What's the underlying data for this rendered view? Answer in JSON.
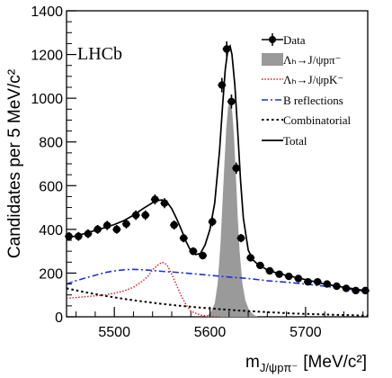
{
  "chart_data": {
    "type": "line",
    "experiment_label": "LHCb",
    "xlabel_main": "m",
    "xlabel_sub": "J/ψpπ⁻",
    "xlabel_unit": "[MeV/c²]",
    "ylabel": "Candidates per 5 MeV/c²",
    "xlim": [
      5450,
      5765
    ],
    "ylim": [
      0,
      1400
    ],
    "x_ticks": [
      5500,
      5600,
      5700
    ],
    "x_tick_labels": [
      "5500",
      "5600",
      "5700"
    ],
    "y_ticks": [
      0,
      200,
      400,
      600,
      800,
      1000,
      1200,
      1400
    ],
    "y_tick_labels": [
      "0",
      "200",
      "400",
      "600",
      "800",
      "1000",
      "1200",
      "1400"
    ],
    "legend": {
      "placement": "top-right",
      "entries": [
        {
          "key": "data",
          "label": "Data"
        },
        {
          "key": "signal",
          "label": "Λₕ→J/ψpπ⁻"
        },
        {
          "key": "pk",
          "label": "Λₕ→J/ψpK⁻"
        },
        {
          "key": "brefl",
          "label": "B reflections"
        },
        {
          "key": "comb",
          "label": "Combinatorial"
        },
        {
          "key": "total",
          "label": "Total"
        }
      ]
    },
    "colors": {
      "data": "#000000",
      "signal_fill": "#9a9a9a",
      "pk": "#e8141c",
      "brefl": "#1f2fe0",
      "comb": "#000000",
      "total": "#000000"
    },
    "data_points": {
      "x": [
        5452.5,
        5462.5,
        5472.5,
        5482.5,
        5492.5,
        5502.5,
        5512.5,
        5522.5,
        5532.5,
        5542.5,
        5552.5,
        5562.5,
        5572.5,
        5582.5,
        5592.5,
        5602.5,
        5612.5,
        5617.5,
        5622.5,
        5627.5,
        5632.5,
        5642.5,
        5652.5,
        5662.5,
        5672.5,
        5682.5,
        5692.5,
        5702.5,
        5712.5,
        5722.5,
        5732.5,
        5742.5,
        5752.5,
        5762.5
      ],
      "y": [
        368,
        368,
        380,
        400,
        418,
        400,
        425,
        465,
        465,
        537,
        520,
        420,
        360,
        300,
        280,
        435,
        1060,
        1225,
        985,
        680,
        360,
        270,
        235,
        210,
        195,
        185,
        175,
        160,
        160,
        150,
        140,
        130,
        120,
        120
      ],
      "yerr": [
        20,
        20,
        20,
        20,
        21,
        20,
        21,
        22,
        22,
        23,
        23,
        21,
        19,
        18,
        17,
        21,
        33,
        35,
        32,
        26,
        19,
        17,
        16,
        15,
        14,
        14,
        13,
        13,
        13,
        12,
        12,
        12,
        11,
        11
      ]
    },
    "series": [
      {
        "key": "total",
        "x": [
          5450,
          5460,
          5470,
          5480,
          5490,
          5500,
          5510,
          5520,
          5530,
          5540,
          5545,
          5550,
          5555,
          5560,
          5565,
          5570,
          5575,
          5580,
          5585,
          5590,
          5595,
          5600,
          5605,
          5610,
          5613,
          5616,
          5619,
          5621,
          5623,
          5626,
          5629,
          5632,
          5635,
          5640,
          5645,
          5650,
          5660,
          5670,
          5680,
          5690,
          5700,
          5710,
          5720,
          5730,
          5740,
          5750,
          5765
        ],
        "y": [
          360,
          370,
          382,
          395,
          408,
          422,
          440,
          465,
          495,
          522,
          532,
          535,
          525,
          495,
          450,
          400,
          345,
          300,
          285,
          290,
          330,
          400,
          520,
          760,
          950,
          1130,
          1230,
          1240,
          1200,
          1060,
          850,
          620,
          450,
          305,
          260,
          240,
          215,
          200,
          190,
          180,
          170,
          160,
          150,
          142,
          135,
          128,
          118
        ]
      },
      {
        "key": "signal",
        "x": [
          5595,
          5600,
          5605,
          5608,
          5611,
          5614,
          5617,
          5619,
          5621,
          5623,
          5625,
          5627,
          5629,
          5631,
          5634,
          5637,
          5641,
          5645,
          5650
        ],
        "y": [
          0,
          15,
          60,
          150,
          330,
          600,
          860,
          960,
          985,
          950,
          840,
          660,
          460,
          300,
          150,
          75,
          30,
          12,
          0
        ]
      },
      {
        "key": "pk",
        "x": [
          5450,
          5460,
          5470,
          5480,
          5490,
          5500,
          5510,
          5520,
          5530,
          5535,
          5540,
          5545,
          5550,
          5553,
          5556,
          5560,
          5565,
          5570,
          5575,
          5580,
          5590,
          5600,
          5610
        ],
        "y": [
          85,
          88,
          92,
          96,
          100,
          108,
          118,
          135,
          165,
          185,
          215,
          235,
          250,
          245,
          230,
          195,
          145,
          95,
          55,
          25,
          8,
          2,
          0
        ]
      },
      {
        "key": "brefl",
        "x": [
          5450,
          5460,
          5470,
          5480,
          5490,
          5500,
          5510,
          5520,
          5530,
          5540,
          5550,
          5560,
          5580,
          5600,
          5620,
          5640,
          5660,
          5680,
          5700,
          5720,
          5740,
          5765
        ],
        "y": [
          150,
          165,
          178,
          190,
          202,
          210,
          215,
          217,
          215,
          212,
          208,
          205,
          198,
          190,
          182,
          175,
          165,
          158,
          150,
          140,
          130,
          115
        ]
      },
      {
        "key": "comb",
        "x": [
          5450,
          5470,
          5490,
          5510,
          5530,
          5550,
          5570,
          5590,
          5610,
          5630,
          5650,
          5670,
          5690,
          5710,
          5730,
          5750,
          5765
        ],
        "y": [
          130,
          112,
          96,
          82,
          70,
          59,
          50,
          42,
          35,
          29,
          24,
          19,
          15,
          12,
          9,
          7,
          5
        ]
      }
    ]
  }
}
